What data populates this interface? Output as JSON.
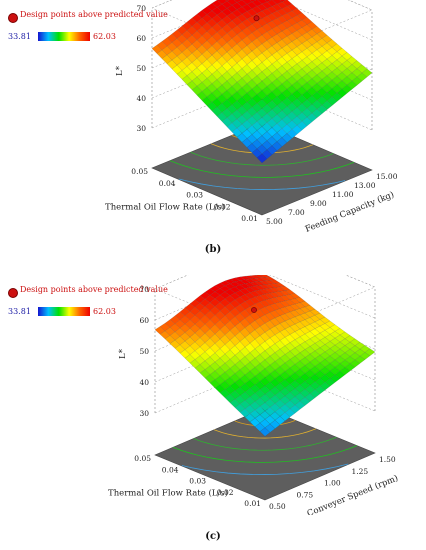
{
  "chart_data": [
    {
      "type": "surface3d",
      "panel_label": "(b)",
      "legend": {
        "design_points": "Design points above predicted value",
        "colorbar_min": "33.81",
        "colorbar_max": "62.03",
        "colors": [
          "#1414d0",
          "#00c0ff",
          "#00e000",
          "#ffff00",
          "#ff6600",
          "#ee0000"
        ]
      },
      "zlabel": "L*",
      "zticks": [
        "30",
        "40",
        "50",
        "60",
        "70"
      ],
      "zlim": [
        30,
        70
      ],
      "xlabel": "Feeding Capacity (kg)",
      "xticks": [
        "5.00",
        "7.00",
        "9.00",
        "11.00",
        "13.00",
        "15.00"
      ],
      "xlim": [
        5,
        15
      ],
      "ylabel": "Thermal Oil Flow Rate (L/s)",
      "yticks": [
        "0.01",
        "0.02",
        "0.03",
        "0.04",
        "0.05"
      ],
      "ylim": [
        0.01,
        0.05
      ],
      "corner_values": {
        "xmin_ymin": 34,
        "xmax_ymin": 49,
        "xmin_ymax": 56,
        "xmax_ymax": 63
      },
      "peak": {
        "x": 11,
        "y": 0.045,
        "z": 62
      },
      "design_point": {
        "x": 12,
        "y": 0.04,
        "z": 60
      }
    },
    {
      "type": "surface3d",
      "panel_label": "(c)",
      "legend": {
        "design_points": "Design points above predicted value",
        "colorbar_min": "33.81",
        "colorbar_max": "62.03",
        "colors": [
          "#1414d0",
          "#00c0ff",
          "#00e000",
          "#ffff00",
          "#ff6600",
          "#ee0000"
        ]
      },
      "zlabel": "L*",
      "zticks": [
        "30",
        "40",
        "50",
        "60",
        "70"
      ],
      "zlim": [
        30,
        70
      ],
      "xlabel": "Conveyer Speed (rpm)",
      "xticks": [
        "0.50",
        "0.75",
        "1.00",
        "1.25",
        "1.50"
      ],
      "xlim": [
        0.5,
        1.5
      ],
      "ylabel": "Thermal Oil Flow Rate (L/s)",
      "yticks": [
        "0.01",
        "0.02",
        "0.03",
        "0.04",
        "0.05"
      ],
      "ylim": [
        0.01,
        0.05
      ],
      "corner_values": {
        "xmin_ymin": 37,
        "xmax_ymin": 49,
        "xmin_ymax": 56,
        "xmax_ymax": 57
      },
      "peak": {
        "x": 1.1,
        "y": 0.045,
        "z": 62
      },
      "design_point": {
        "x": 1.15,
        "y": 0.04,
        "z": 57
      }
    }
  ]
}
